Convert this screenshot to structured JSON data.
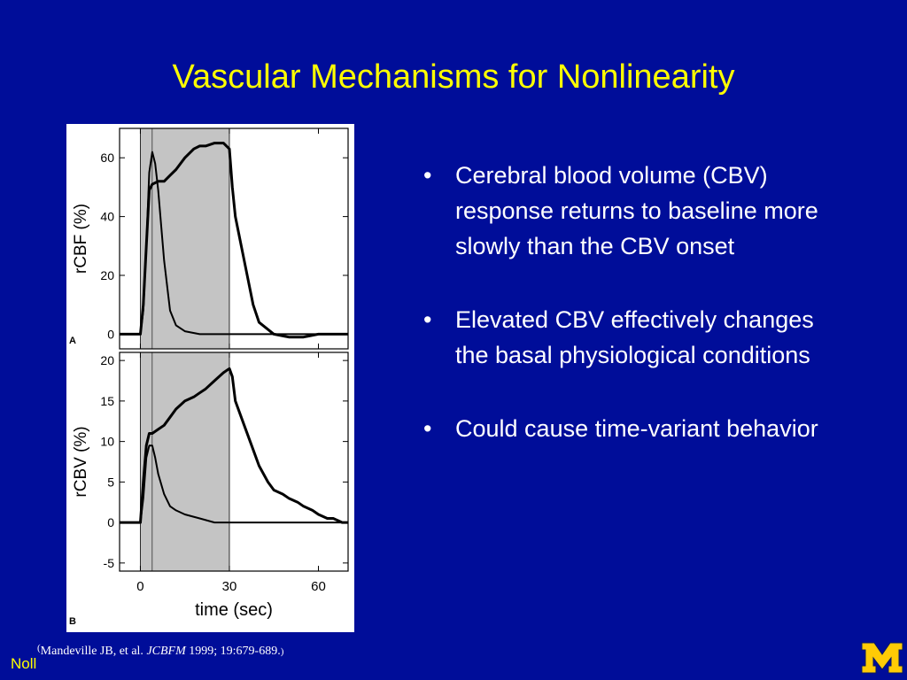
{
  "slide": {
    "title": "Vascular Mechanisms for Nonlinearity",
    "bullets": [
      "Cerebral blood volume (CBV) response returns to baseline more slowly than the CBV onset",
      "Elevated CBV effectively changes the basal physiological conditions",
      "Could cause time-variant behavior"
    ],
    "citation": {
      "open": "(",
      "authors": "Mandeville JB, et al. ",
      "journal": "JCBFM",
      "details": " 1999; 19:679-689.",
      "close": ")"
    },
    "author_tag": "Noll",
    "logo": "block-M-logo",
    "colors": {
      "background": "#000d99",
      "title": "#ffff00",
      "text": "#ffffff",
      "logo": "#ffcb05"
    }
  },
  "chart_data": [
    {
      "type": "line",
      "panel_label": "A",
      "ylabel": "rCBF (%)",
      "xlabel": "",
      "yticks": [
        0,
        20,
        40,
        60
      ],
      "ylim": [
        -5,
        70
      ],
      "xlim": [
        -7,
        70
      ],
      "stimulus_window": [
        0,
        30
      ],
      "marker_line_x": 4,
      "series": [
        {
          "x": [
            -7,
            -3,
            0,
            1,
            2,
            3,
            4,
            5,
            6,
            8,
            10,
            12,
            15,
            20,
            25,
            28,
            30,
            32,
            34,
            36,
            40,
            45,
            50,
            55,
            60,
            65,
            70
          ],
          "values": [
            0,
            0,
            0,
            8,
            30,
            55,
            62,
            58,
            49,
            25,
            8,
            3,
            1,
            0,
            0,
            0,
            0,
            0,
            0,
            0,
            0,
            0,
            0,
            0,
            0,
            0,
            0
          ]
        },
        {
          "x": [
            -7,
            -3,
            0,
            1,
            2,
            3,
            4,
            6,
            8,
            10,
            12,
            15,
            18,
            20,
            22,
            25,
            28,
            30,
            31,
            32,
            34,
            36,
            38,
            40,
            45,
            50,
            55,
            60,
            65,
            70
          ],
          "values": [
            0,
            0,
            0,
            10,
            30,
            49,
            51,
            52,
            52,
            54,
            56,
            60,
            63,
            64,
            64,
            65,
            65,
            63,
            50,
            40,
            30,
            20,
            10,
            4,
            0,
            -1,
            -1,
            0,
            0,
            0
          ]
        }
      ]
    },
    {
      "type": "line",
      "panel_label": "B",
      "ylabel": "rCBV (%)",
      "xlabel": "time (sec)",
      "xticks": [
        0,
        30,
        60
      ],
      "yticks": [
        -5,
        0,
        5,
        10,
        15,
        20
      ],
      "ylim": [
        -6,
        21
      ],
      "xlim": [
        -7,
        70
      ],
      "stimulus_window": [
        0,
        30
      ],
      "marker_line_x": 4,
      "series": [
        {
          "x": [
            -7,
            -3,
            0,
            1,
            2,
            3,
            4,
            5,
            6,
            8,
            10,
            12,
            15,
            20,
            25,
            30,
            35,
            40,
            45,
            50,
            55,
            60,
            65,
            70
          ],
          "values": [
            0,
            0,
            0,
            3,
            8,
            9.5,
            9.5,
            8,
            6,
            3.5,
            2,
            1.5,
            1,
            0.5,
            0,
            0,
            0,
            0,
            0,
            0,
            0,
            0,
            0,
            0
          ]
        },
        {
          "x": [
            -7,
            -3,
            0,
            1,
            2,
            3,
            4,
            6,
            8,
            10,
            12,
            15,
            18,
            20,
            22,
            25,
            28,
            30,
            31,
            32,
            35,
            38,
            40,
            43,
            45,
            48,
            50,
            53,
            55,
            58,
            60,
            63,
            65,
            68,
            70
          ],
          "values": [
            0,
            0,
            0,
            5,
            9.5,
            11,
            11,
            11.5,
            12,
            13,
            14,
            15,
            15.5,
            16,
            16.5,
            17.5,
            18.5,
            19,
            18,
            15,
            12,
            9,
            7,
            5,
            4,
            3.5,
            3,
            2.5,
            2,
            1.5,
            1,
            0.5,
            0.5,
            0,
            0
          ]
        }
      ]
    }
  ]
}
